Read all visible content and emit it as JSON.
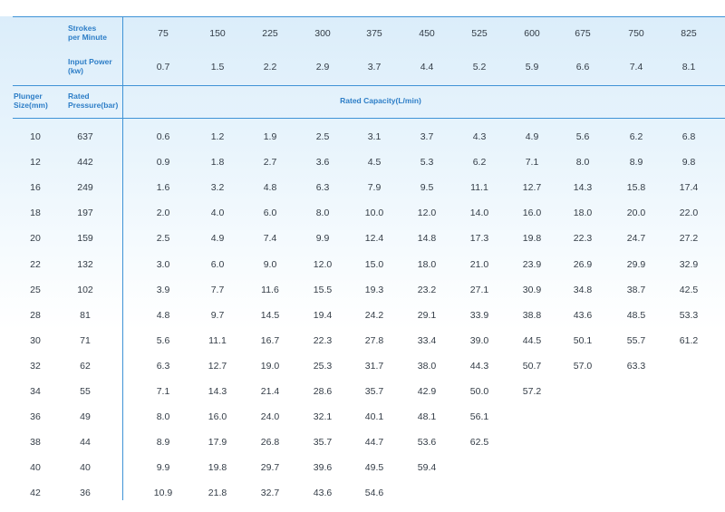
{
  "headers": {
    "strokes_label": "Strokes\nper Minute",
    "power_label": "Input Power\n(kw)",
    "plunger_label": "Plunger\nSize(mm)",
    "pressure_label": "Rated\nPressure(bar)",
    "capacity_label": "Rated Capacity(L/min)"
  },
  "strokes": [
    "75",
    "150",
    "225",
    "300",
    "375",
    "450",
    "525",
    "600",
    "675",
    "750",
    "825"
  ],
  "powers": [
    "0.7",
    "1.5",
    "2.2",
    "2.9",
    "3.7",
    "4.4",
    "5.2",
    "5.9",
    "6.6",
    "7.4",
    "8.1"
  ],
  "rows": [
    {
      "size": "10",
      "pressure": "637",
      "cap": [
        "0.6",
        "1.2",
        "1.9",
        "2.5",
        "3.1",
        "3.7",
        "4.3",
        "4.9",
        "5.6",
        "6.2",
        "6.8"
      ]
    },
    {
      "size": "12",
      "pressure": "442",
      "cap": [
        "0.9",
        "1.8",
        "2.7",
        "3.6",
        "4.5",
        "5.3",
        "6.2",
        "7.1",
        "8.0",
        "8.9",
        "9.8"
      ]
    },
    {
      "size": "16",
      "pressure": "249",
      "cap": [
        "1.6",
        "3.2",
        "4.8",
        "6.3",
        "7.9",
        "9.5",
        "11.1",
        "12.7",
        "14.3",
        "15.8",
        "17.4"
      ]
    },
    {
      "size": "18",
      "pressure": "197",
      "cap": [
        "2.0",
        "4.0",
        "6.0",
        "8.0",
        "10.0",
        "12.0",
        "14.0",
        "16.0",
        "18.0",
        "20.0",
        "22.0"
      ]
    },
    {
      "size": "20",
      "pressure": "159",
      "cap": [
        "2.5",
        "4.9",
        "7.4",
        "9.9",
        "12.4",
        "14.8",
        "17.3",
        "19.8",
        "22.3",
        "24.7",
        "27.2"
      ]
    },
    {
      "size": "22",
      "pressure": "132",
      "cap": [
        "3.0",
        "6.0",
        "9.0",
        "12.0",
        "15.0",
        "18.0",
        "21.0",
        "23.9",
        "26.9",
        "29.9",
        "32.9"
      ]
    },
    {
      "size": "25",
      "pressure": "102",
      "cap": [
        "3.9",
        "7.7",
        "11.6",
        "15.5",
        "19.3",
        "23.2",
        "27.1",
        "30.9",
        "34.8",
        "38.7",
        "42.5"
      ]
    },
    {
      "size": "28",
      "pressure": "81",
      "cap": [
        "4.8",
        "9.7",
        "14.5",
        "19.4",
        "24.2",
        "29.1",
        "33.9",
        "38.8",
        "43.6",
        "48.5",
        "53.3"
      ]
    },
    {
      "size": "30",
      "pressure": "71",
      "cap": [
        "5.6",
        "11.1",
        "16.7",
        "22.3",
        "27.8",
        "33.4",
        "39.0",
        "44.5",
        "50.1",
        "55.7",
        "61.2"
      ]
    },
    {
      "size": "32",
      "pressure": "62",
      "cap": [
        "6.3",
        "12.7",
        "19.0",
        "25.3",
        "31.7",
        "38.0",
        "44.3",
        "50.7",
        "57.0",
        "63.3",
        ""
      ]
    },
    {
      "size": "34",
      "pressure": "55",
      "cap": [
        "7.1",
        "14.3",
        "21.4",
        "28.6",
        "35.7",
        "42.9",
        "50.0",
        "57.2",
        "",
        "",
        ""
      ]
    },
    {
      "size": "36",
      "pressure": "49",
      "cap": [
        "8.0",
        "16.0",
        "24.0",
        "32.1",
        "40.1",
        "48.1",
        "56.1",
        "",
        "",
        "",
        ""
      ]
    },
    {
      "size": "38",
      "pressure": "44",
      "cap": [
        "8.9",
        "17.9",
        "26.8",
        "35.7",
        "44.7",
        "53.6",
        "62.5",
        "",
        "",
        "",
        ""
      ]
    },
    {
      "size": "40",
      "pressure": "40",
      "cap": [
        "9.9",
        "19.8",
        "29.7",
        "39.6",
        "49.5",
        "59.4",
        "",
        "",
        "",
        "",
        ""
      ]
    },
    {
      "size": "42",
      "pressure": "36",
      "cap": [
        "10.9",
        "21.8",
        "32.7",
        "43.6",
        "54.6",
        "",
        "",
        "",
        "",
        "",
        ""
      ]
    }
  ]
}
